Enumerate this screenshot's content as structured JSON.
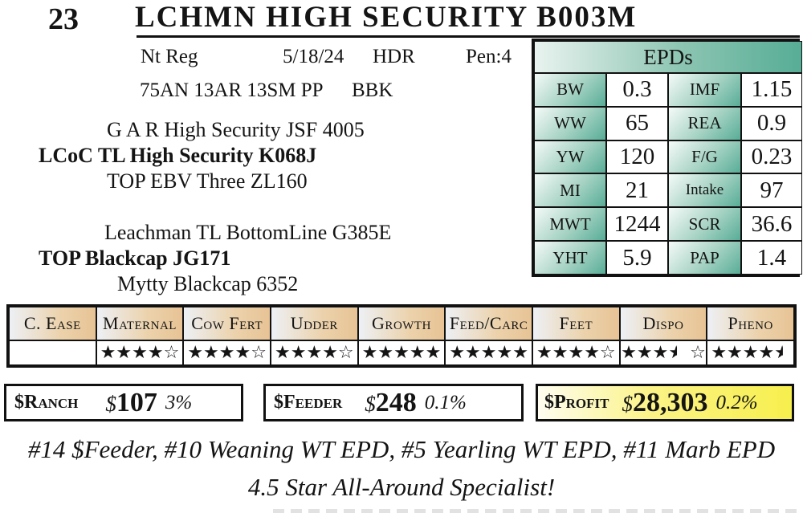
{
  "lot": {
    "number": "23",
    "title": "LCHMN HIGH SECURITY B003M"
  },
  "info": {
    "reg_status": "Nt Reg",
    "birth_date": "5/18/24",
    "code": "HDR",
    "pen": "Pen:4",
    "breed_makeup": "75AN 13AR 13SM PP",
    "color_code": "BBK"
  },
  "pedigree": {
    "sire_top": "G A R High Security JSF 4005",
    "sire": "LCoC TL High Security K068J",
    "sire_bottom": "TOP EBV Three ZL160",
    "dam_top": "Leachman TL BottomLine G385E",
    "dam": "TOP Blackcap JG171",
    "dam_bottom": "Mytty Blackcap 6352"
  },
  "epds": {
    "title": "EPDs",
    "rows": [
      {
        "l1": "BW",
        "v1": "0.3",
        "l2": "IMF",
        "v2": "1.15"
      },
      {
        "l1": "WW",
        "v1": "65",
        "l2": "REA",
        "v2": "0.9"
      },
      {
        "l1": "YW",
        "v1": "120",
        "l2": "F/G",
        "v2": "0.23"
      },
      {
        "l1": "MI",
        "v1": "21",
        "l2": "Intake",
        "v2": "97"
      },
      {
        "l1": "MWT",
        "v1": "1244",
        "l2": "SCR",
        "v2": "36.6"
      },
      {
        "l1": "YHT",
        "v1": "5.9",
        "l2": "PAP",
        "v2": "1.4"
      }
    ]
  },
  "ratings": {
    "full_star": "★",
    "outline_star": "☆",
    "columns": [
      {
        "label": "C. Ease",
        "rating": null,
        "pattern": []
      },
      {
        "label": "Maternal",
        "rating": 4,
        "pattern": [
          "full",
          "full",
          "full",
          "full",
          "outline"
        ]
      },
      {
        "label": "Cow Fert",
        "rating": 4,
        "pattern": [
          "full",
          "full",
          "full",
          "full",
          "outline"
        ]
      },
      {
        "label": "Udder",
        "rating": 4,
        "pattern": [
          "full",
          "full",
          "full",
          "full",
          "outline"
        ]
      },
      {
        "label": "Growth",
        "rating": 5,
        "pattern": [
          "full",
          "full",
          "full",
          "full",
          "full"
        ]
      },
      {
        "label": "Feed/Carc",
        "rating": 5,
        "pattern": [
          "full",
          "full",
          "full",
          "full",
          "full"
        ]
      },
      {
        "label": "Feet",
        "rating": 4,
        "pattern": [
          "full",
          "full",
          "full",
          "full",
          "outline"
        ]
      },
      {
        "label": "Dispo",
        "rating": 3.5,
        "pattern": [
          "full",
          "full",
          "full",
          "half",
          "space",
          "outline"
        ]
      },
      {
        "label": "Pheno",
        "rating": 4.5,
        "pattern": [
          "full",
          "full",
          "full",
          "full",
          "half"
        ]
      }
    ]
  },
  "values": [
    {
      "label": "$Ranch",
      "dollar": "$",
      "amount": "107",
      "percent": "3%"
    },
    {
      "label": "$Feeder",
      "dollar": "$",
      "amount": "248",
      "percent": "0.1%"
    },
    {
      "label": "$Profit",
      "dollar": "$",
      "amount": "28,303",
      "percent": "0.2%"
    }
  ],
  "footer": {
    "line1": "#14 $Feeder, #10 Weaning WT EPD, #5 Yearling WT EPD, #11 Marb EPD",
    "line2": "4.5 Star All-Around Specialist!"
  },
  "colors": {
    "epd_teal": "#57ad96",
    "header_tan": "#e7c395",
    "profit_yellow": "#f7ef4d",
    "border": "#111111"
  }
}
